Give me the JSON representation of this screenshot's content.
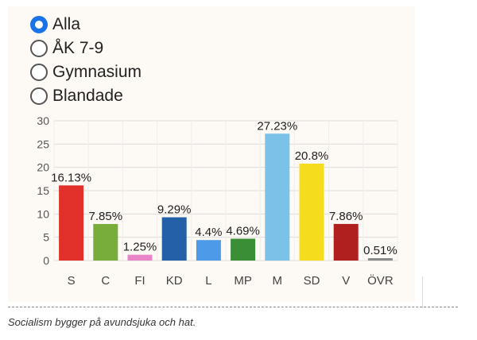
{
  "filter": {
    "options": [
      {
        "label": "Alla",
        "selected": true
      },
      {
        "label": "ÅK 7-9",
        "selected": false
      },
      {
        "label": "Gymnasium",
        "selected": false
      },
      {
        "label": "Blandade",
        "selected": false
      }
    ],
    "accent_color": "#1a73e8"
  },
  "chart_data": {
    "type": "bar",
    "categories": [
      "S",
      "C",
      "FI",
      "KD",
      "L",
      "MP",
      "M",
      "SD",
      "V",
      "ÖVR"
    ],
    "values": [
      16.13,
      7.85,
      1.25,
      9.29,
      4.4,
      4.69,
      27.23,
      20.8,
      7.86,
      0.51
    ],
    "value_labels": [
      "16.13%",
      "7.85%",
      "1.25%",
      "9.29%",
      "4.4%",
      "4.69%",
      "27.23%",
      "20.8%",
      "7.86%",
      "0.51%"
    ],
    "colors": [
      "#e2302b",
      "#79ad3b",
      "#e884c7",
      "#2460a8",
      "#4d9be8",
      "#3a8e35",
      "#7cc1e8",
      "#f5dd1e",
      "#b0201f",
      "#8a8a8a"
    ],
    "yticks": [
      0,
      5,
      10,
      15,
      20,
      25,
      30
    ],
    "ylim": [
      0,
      30
    ],
    "grid": true,
    "title": "",
    "xlabel": "",
    "ylabel": ""
  },
  "caption": "Socialism bygger på avundsjuka och hat."
}
